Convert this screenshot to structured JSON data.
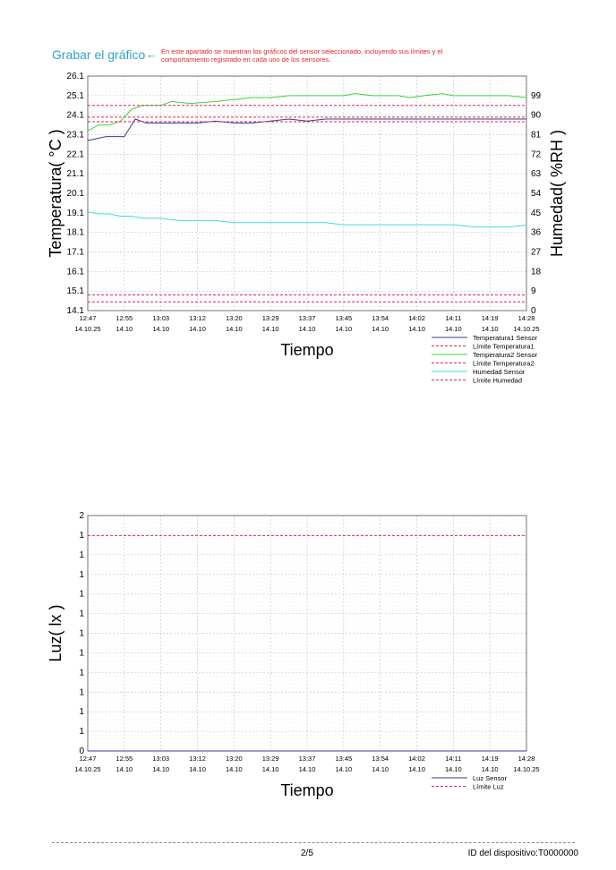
{
  "header": {
    "save_chart_label": "Grabar el gráfico",
    "arrow": "←",
    "note": "En este apartado se muestran los gráficos del sensor seleccionado, incluyendo sus límites y el comportamiento registrado en cada uno de los sensores."
  },
  "footer": {
    "page": "2/5",
    "device_id": "ID del dispositivo:T0000000"
  },
  "colors": {
    "temp1": "#3b3b8f",
    "temp2": "#3fd23f",
    "humidity": "#40e0d0",
    "limit": "#e0245e",
    "luz_limit": "#c0392b",
    "grid": "#c8c8c8"
  },
  "chart_data": [
    {
      "type": "line",
      "xlabel": "Tiempo",
      "ylabel": "Temperatura( °C )",
      "y2label": "Humedad( %RH )",
      "ylim": [
        14.1,
        26.1
      ],
      "y2lim": [
        0,
        108
      ],
      "y_ticks": [
        "26.1",
        "25.1",
        "24.1",
        "23.1",
        "22.1",
        "21.1",
        "20.1",
        "19.1",
        "18.1",
        "17.1",
        "16.1",
        "15.1",
        "14.1"
      ],
      "y2_ticks": [
        "99",
        "90",
        "81",
        "72",
        "63",
        "54",
        "45",
        "36",
        "27",
        "18",
        "9",
        "0"
      ],
      "x_ticks": [
        {
          "time": "12:47",
          "date": "14.10.25"
        },
        {
          "time": "12:55",
          "date": "14.10"
        },
        {
          "time": "13:03",
          "date": "14.10"
        },
        {
          "time": "13:12",
          "date": "14.10"
        },
        {
          "time": "13:20",
          "date": "14.10"
        },
        {
          "time": "13:29",
          "date": "14.10"
        },
        {
          "time": "13:37",
          "date": "14.10"
        },
        {
          "time": "13:45",
          "date": "14.10"
        },
        {
          "time": "13:54",
          "date": "14.10"
        },
        {
          "time": "14:02",
          "date": "14.10"
        },
        {
          "time": "14:11",
          "date": "14.10"
        },
        {
          "time": "14:19",
          "date": "14.10"
        },
        {
          "time": "14:28",
          "date": "14.10.25"
        }
      ],
      "series": [
        {
          "name": "Temperatura1 Sensor",
          "axis": "left",
          "style": "solid",
          "color": "#3b3b8f",
          "x": [
            0,
            0.5,
            1,
            1.3,
            1.6,
            2,
            2.5,
            3,
            3.5,
            4,
            4.5,
            5,
            5.5,
            6,
            6.5,
            7,
            7.5,
            8,
            8.5,
            9,
            9.5,
            10,
            10.5,
            11,
            11.5,
            12
          ],
          "values": [
            22.8,
            23.0,
            23.0,
            23.9,
            23.7,
            23.7,
            23.7,
            23.7,
            23.8,
            23.7,
            23.7,
            23.8,
            23.9,
            23.8,
            23.9,
            23.9,
            23.9,
            23.9,
            23.9,
            23.9,
            23.9,
            23.9,
            23.9,
            23.9,
            23.9,
            23.9
          ]
        },
        {
          "name": "Límite Temperatura1",
          "axis": "left",
          "style": "dashed",
          "color": "#e0245e",
          "x": [
            0,
            12
          ],
          "values": [
            24.0,
            24.0
          ]
        },
        {
          "name": "Temperatura2 Sensor",
          "axis": "left",
          "style": "solid",
          "color": "#3fd23f",
          "x": [
            0,
            0.3,
            0.6,
            0.9,
            1.2,
            1.5,
            2,
            2.3,
            2.8,
            3.5,
            4,
            4.5,
            5,
            5.5,
            6,
            6.5,
            7,
            7.3,
            7.8,
            8.5,
            8.8,
            9.2,
            9.7,
            10,
            10.3,
            10.7,
            11,
            11.5,
            12
          ],
          "values": [
            23.3,
            23.6,
            23.6,
            23.8,
            24.4,
            24.6,
            24.6,
            24.8,
            24.7,
            24.8,
            24.9,
            25.0,
            25.0,
            25.1,
            25.1,
            25.1,
            25.1,
            25.2,
            25.1,
            25.1,
            25.0,
            25.1,
            25.2,
            25.1,
            25.1,
            25.1,
            25.1,
            25.1,
            25.0
          ]
        },
        {
          "name": "Límite Temperatura2",
          "axis": "left",
          "style": "dashed",
          "color": "#e0245e",
          "x": [
            0,
            12
          ],
          "values": [
            24.6,
            24.6
          ]
        },
        {
          "name": "Humedad Sensor",
          "axis": "right",
          "style": "solid",
          "color": "#40e0d0",
          "x": [
            0,
            0.3,
            0.6,
            0.9,
            1.2,
            1.5,
            2,
            2.5,
            3,
            3.5,
            4,
            5,
            6,
            6.5,
            7,
            8,
            9,
            10,
            10.6,
            11,
            11.5,
            12
          ],
          "values": [
            45.5,
            44.5,
            44.5,
            43.5,
            43.5,
            42.5,
            42.5,
            41.5,
            41.5,
            41.5,
            40.5,
            40.5,
            40.5,
            40.5,
            39.5,
            39.5,
            39.5,
            39.5,
            38.5,
            38.5,
            38.5,
            39.3
          ]
        },
        {
          "name": "Límite Humedad",
          "axis": "right",
          "style": "dashed",
          "color": "#e0245e",
          "x": [
            0,
            12
          ],
          "values": [
            87.0,
            87.0
          ]
        },
        {
          "name": "",
          "axis": "right",
          "style": "dashed",
          "color": "#e0245e",
          "x": [
            0,
            12
          ],
          "values": [
            4.0,
            4.0
          ]
        },
        {
          "name": "",
          "axis": "left",
          "style": "dashed",
          "color": "#e0245e",
          "x": [
            0,
            12
          ],
          "values": [
            14.9,
            14.9
          ]
        }
      ]
    },
    {
      "type": "line",
      "xlabel": "Tiempo",
      "ylabel": "Luz( lx )",
      "ylim": [
        0,
        2
      ],
      "y_ticks": [
        "2",
        "1",
        "1",
        "1",
        "1",
        "1",
        "1",
        "1",
        "1",
        "1",
        "1",
        "1",
        "0"
      ],
      "x_ticks": [
        {
          "time": "12:47",
          "date": "14.10.25"
        },
        {
          "time": "12:55",
          "date": "14.10"
        },
        {
          "time": "13:03",
          "date": "14.10"
        },
        {
          "time": "13:12",
          "date": "14.10"
        },
        {
          "time": "13:20",
          "date": "14.10"
        },
        {
          "time": "13:29",
          "date": "14.10"
        },
        {
          "time": "13:37",
          "date": "14.10"
        },
        {
          "time": "13:45",
          "date": "14.10"
        },
        {
          "time": "13:54",
          "date": "14.10"
        },
        {
          "time": "14:02",
          "date": "14.10"
        },
        {
          "time": "14:11",
          "date": "14.10"
        },
        {
          "time": "14:19",
          "date": "14.10"
        },
        {
          "time": "14:28",
          "date": "14.10.25"
        }
      ],
      "series": [
        {
          "name": "Luz Sensor",
          "axis": "left",
          "style": "solid",
          "color": "#3b3b8f",
          "x": [
            0,
            12
          ],
          "values": [
            0,
            0
          ]
        },
        {
          "name": "Límite Luz",
          "axis": "left",
          "style": "dashed",
          "color": "#e0245e",
          "x": [
            0,
            12
          ],
          "values": [
            1.83,
            1.83
          ]
        }
      ]
    }
  ]
}
